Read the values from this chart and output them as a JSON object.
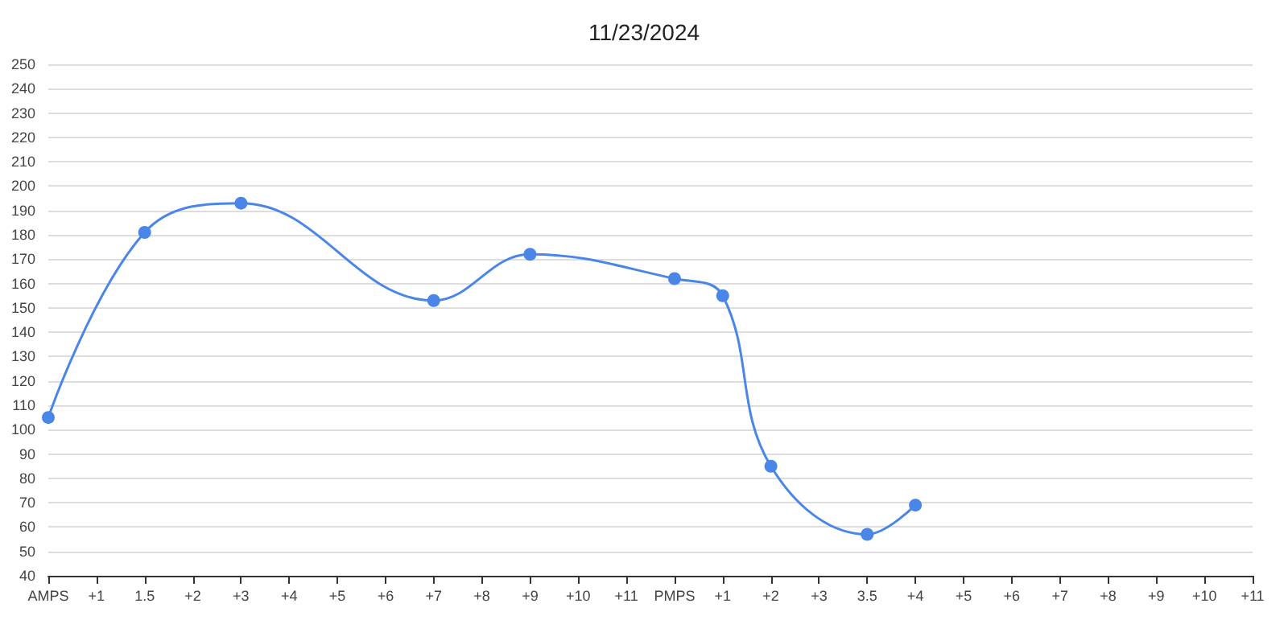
{
  "chart_data": {
    "type": "line",
    "title": "11/23/2024",
    "categories": [
      "AMPS",
      "+1",
      "1.5",
      "+2",
      "+3",
      "+4",
      "+5",
      "+6",
      "+7",
      "+8",
      "+9",
      "+10",
      "+11",
      "PMPS",
      "+1",
      "+2",
      "+3",
      "3.5",
      "+4",
      "+5",
      "+6",
      "+7",
      "+8",
      "+9",
      "+10",
      "+11"
    ],
    "series": [
      {
        "color": "#4a86e8",
        "values": [
          105,
          null,
          181,
          null,
          193,
          null,
          null,
          null,
          153,
          null,
          172,
          null,
          null,
          162,
          155,
          85,
          null,
          57,
          69,
          null,
          null,
          null,
          null,
          null,
          null,
          null
        ]
      }
    ],
    "ylim": [
      40,
      250
    ],
    "yticks": [
      40,
      50,
      60,
      70,
      80,
      90,
      100,
      110,
      120,
      130,
      140,
      150,
      160,
      170,
      180,
      190,
      200,
      210,
      220,
      230,
      240,
      250
    ],
    "grid": "y",
    "marker": "circle",
    "line_style": "solid"
  }
}
